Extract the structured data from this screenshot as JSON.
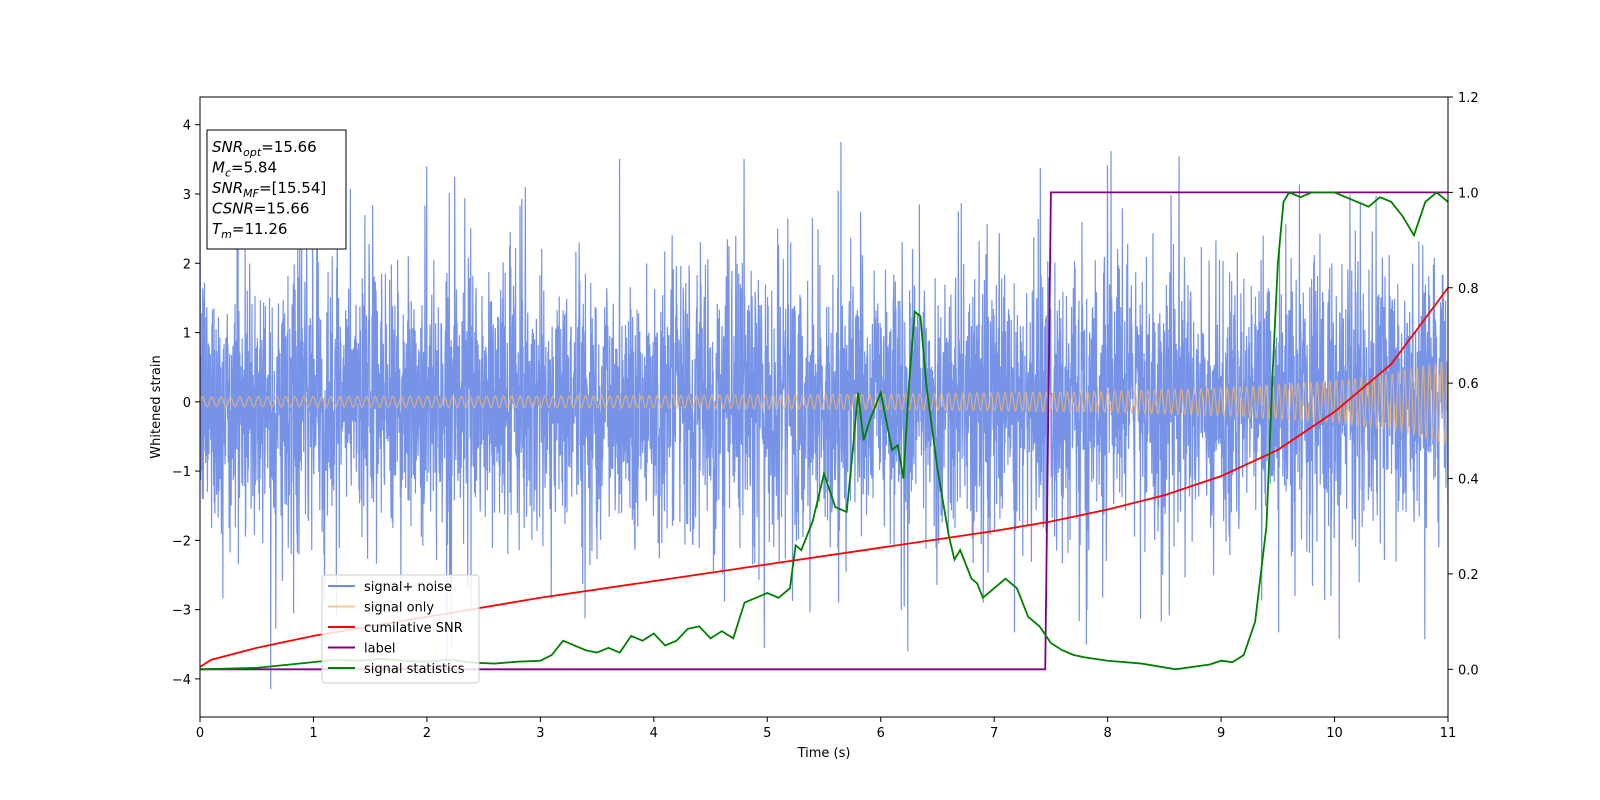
{
  "chart_data": {
    "type": "line",
    "xlabel": "Time (s)",
    "ylabel": "Whitened strain",
    "xlim": [
      0,
      11
    ],
    "ylim": [
      -4.55,
      4.4
    ],
    "y2lim": [
      -0.1,
      1.2
    ],
    "grid": false,
    "legend_position": "lower-left",
    "x_ticks": [
      0,
      1,
      2,
      3,
      4,
      5,
      6,
      7,
      8,
      9,
      10,
      11
    ],
    "y_ticks": [
      -4,
      -3,
      -2,
      -1,
      0,
      1,
      2,
      3,
      4
    ],
    "y2_ticks": [
      "0.0",
      "0.2",
      "0.4",
      "0.6",
      "0.8",
      "1.0",
      "1.2"
    ],
    "annotation": [
      {
        "base": "SNR",
        "sub": "opt",
        "rest": "=15.66"
      },
      {
        "base": "M",
        "sub": "c",
        "rest": "=5.84"
      },
      {
        "base": "SNR",
        "sub": "MF",
        "rest": "=[15.54]"
      },
      {
        "base": "CSNR",
        "sub": "",
        "rest": "=15.66"
      },
      {
        "base": "T",
        "sub": "m",
        "rest": "=11.26"
      }
    ],
    "series": [
      {
        "name": "signal+ noise",
        "color": "#6f8de6",
        "axis": "left",
        "noise_sigma": 1.0,
        "peak_max": 4.0,
        "peak_min": -4.15
      },
      {
        "name": "signal only",
        "color": "#f5b66a",
        "axis": "left",
        "envelope": {
          "x": [
            0,
            2,
            4,
            6,
            8,
            9,
            10,
            10.5,
            11
          ],
          "amp": [
            0.07,
            0.08,
            0.09,
            0.11,
            0.15,
            0.2,
            0.3,
            0.4,
            0.6
          ]
        }
      },
      {
        "name": "cumilative SNR",
        "color": "#ff0000",
        "axis": "right",
        "x": [
          0,
          0.1,
          0.5,
          1,
          2,
          3,
          4,
          5,
          6,
          7,
          7.5,
          8,
          8.5,
          9,
          9.5,
          10,
          10.5,
          11
        ],
        "y": [
          0.005,
          0.02,
          0.045,
          0.07,
          0.11,
          0.15,
          0.185,
          0.22,
          0.255,
          0.29,
          0.31,
          0.335,
          0.365,
          0.405,
          0.46,
          0.54,
          0.64,
          0.8
        ]
      },
      {
        "name": "label",
        "color": "#800080",
        "axis": "right",
        "x": [
          0,
          7.45,
          7.5,
          11
        ],
        "y": [
          0,
          0,
          1,
          1
        ]
      },
      {
        "name": "signal statistics",
        "color": "#008000",
        "axis": "right",
        "x": [
          0,
          0.5,
          1,
          1.2,
          1.4,
          1.6,
          1.8,
          2.0,
          2.2,
          2.4,
          2.6,
          2.8,
          3.0,
          3.1,
          3.2,
          3.3,
          3.4,
          3.5,
          3.6,
          3.7,
          3.8,
          3.9,
          4.0,
          4.1,
          4.2,
          4.3,
          4.4,
          4.5,
          4.6,
          4.7,
          4.8,
          4.9,
          5.0,
          5.1,
          5.2,
          5.25,
          5.3,
          5.4,
          5.5,
          5.6,
          5.7,
          5.75,
          5.8,
          5.85,
          5.9,
          6.0,
          6.1,
          6.15,
          6.2,
          6.25,
          6.3,
          6.35,
          6.4,
          6.5,
          6.6,
          6.65,
          6.7,
          6.75,
          6.8,
          6.85,
          6.9,
          7.0,
          7.1,
          7.2,
          7.3,
          7.4,
          7.5,
          7.6,
          7.7,
          7.8,
          8.0,
          8.3,
          8.6,
          8.9,
          9.0,
          9.1,
          9.2,
          9.3,
          9.4,
          9.45,
          9.5,
          9.55,
          9.6,
          9.7,
          9.8,
          10.0,
          10.2,
          10.3,
          10.4,
          10.5,
          10.6,
          10.7,
          10.8,
          10.9,
          11
        ],
        "y": [
          0.0,
          0.003,
          0.015,
          0.02,
          0.018,
          0.022,
          0.018,
          0.016,
          0.02,
          0.014,
          0.012,
          0.016,
          0.018,
          0.03,
          0.06,
          0.05,
          0.04,
          0.035,
          0.045,
          0.035,
          0.07,
          0.06,
          0.075,
          0.05,
          0.06,
          0.085,
          0.09,
          0.065,
          0.08,
          0.065,
          0.14,
          0.15,
          0.16,
          0.15,
          0.17,
          0.26,
          0.25,
          0.31,
          0.41,
          0.34,
          0.33,
          0.45,
          0.58,
          0.48,
          0.52,
          0.58,
          0.46,
          0.47,
          0.4,
          0.6,
          0.75,
          0.74,
          0.6,
          0.42,
          0.28,
          0.23,
          0.25,
          0.22,
          0.19,
          0.18,
          0.15,
          0.17,
          0.19,
          0.17,
          0.11,
          0.09,
          0.055,
          0.04,
          0.03,
          0.025,
          0.018,
          0.012,
          0.0,
          0.01,
          0.018,
          0.015,
          0.03,
          0.1,
          0.3,
          0.6,
          0.85,
          0.98,
          1.0,
          0.99,
          1.0,
          1.0,
          0.98,
          0.97,
          0.99,
          0.98,
          0.95,
          0.91,
          0.98,
          1.0,
          0.98
        ]
      }
    ]
  }
}
